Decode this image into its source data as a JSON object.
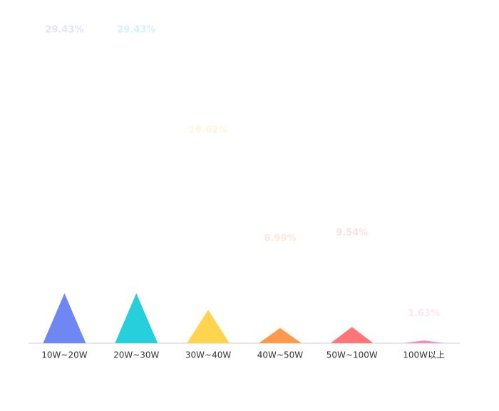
{
  "chart_data": {
    "type": "pictorial-triangle",
    "categories": [
      "10W~20W",
      "20W~30W",
      "30W~40W",
      "40W~50W",
      "50W~100W",
      "100W以上"
    ],
    "values": [
      29.43,
      29.43,
      19.62,
      8.99,
      9.54,
      1.63
    ],
    "value_labels": [
      "29.43%",
      "29.43%",
      "19.62%",
      "8.99%",
      "9.54%",
      "1.63%"
    ],
    "colors": [
      "#6e87f2",
      "#26cfdb",
      "#ffd54f",
      "#ff9a4d",
      "#ff7477",
      "#f28dc4"
    ]
  }
}
